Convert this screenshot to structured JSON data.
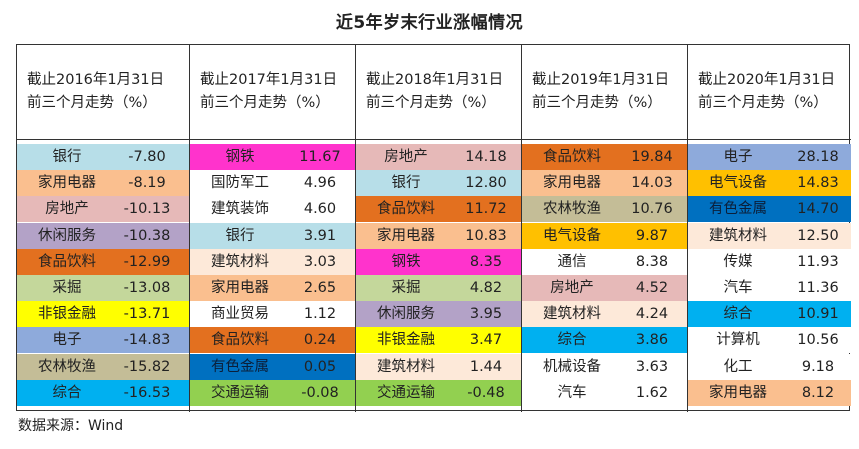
{
  "title": "近5年岁末行业涨幅情况",
  "source": "数据来源：Wind",
  "colors": {
    "非银金融": "#ffff00",
    "钢铁": "#ff33cc",
    "食品饮料": "#e3701f",
    "电气设备": "#ffc000",
    "有色金属": "#0070c0",
    "综合": "#00b0f0",
    "休闲服务": "#b3a2c7",
    "电子": "#8eaadb",
    "农林牧渔": "#c4bd97",
    "采掘": "#c4d79b",
    "家用电器": "#fabf8f",
    "房地产": "#e6b9b8",
    "银行": "#b7dee8",
    "交通运输": "#92d050",
    "建筑材料": "#fde9d9",
    "国防军工": "#ffffff",
    "建筑装饰": "#ffffff",
    "商业贸易": "#ffffff",
    "通信": "#ffffff",
    "机械设备": "#ffffff",
    "汽车": "#ffffff",
    "计算机": "#ffffff",
    "化工": "#ffffff",
    "传媒": "#ffffff"
  },
  "chart_data": {
    "type": "table",
    "unit": "%",
    "columns": [
      {
        "header": [
          "截止2016年1月31日",
          "前三个月走势（%）"
        ],
        "rows": [
          {
            "industry": "银行",
            "value": "-7.80"
          },
          {
            "industry": "家用电器",
            "value": "-8.19"
          },
          {
            "industry": "房地产",
            "value": "-10.13"
          },
          {
            "industry": "休闲服务",
            "value": "-10.38"
          },
          {
            "industry": "食品饮料",
            "value": "-12.99"
          },
          {
            "industry": "采掘",
            "value": "-13.08"
          },
          {
            "industry": "非银金融",
            "value": "-13.71"
          },
          {
            "industry": "电子",
            "value": "-14.83"
          },
          {
            "industry": "农林牧渔",
            "value": "-15.82"
          },
          {
            "industry": "综合",
            "value": "-16.53"
          }
        ]
      },
      {
        "header": [
          "截止2017年1月31日",
          "前三个月走势（%）"
        ],
        "rows": [
          {
            "industry": "钢铁",
            "value": "11.67"
          },
          {
            "industry": "国防军工",
            "value": "4.96"
          },
          {
            "industry": "建筑装饰",
            "value": "4.60"
          },
          {
            "industry": "银行",
            "value": "3.91"
          },
          {
            "industry": "建筑材料",
            "value": "3.03"
          },
          {
            "industry": "家用电器",
            "value": "2.65"
          },
          {
            "industry": "商业贸易",
            "value": "1.12"
          },
          {
            "industry": "食品饮料",
            "value": "0.24"
          },
          {
            "industry": "有色金属",
            "value": "0.05"
          },
          {
            "industry": "交通运输",
            "value": "-0.08"
          }
        ]
      },
      {
        "header": [
          "截止2018年1月31日",
          "前三个月走势（%）"
        ],
        "rows": [
          {
            "industry": "房地产",
            "value": "14.18"
          },
          {
            "industry": "银行",
            "value": "12.80"
          },
          {
            "industry": "食品饮料",
            "value": "11.72"
          },
          {
            "industry": "家用电器",
            "value": "10.83"
          },
          {
            "industry": "钢铁",
            "value": "8.35"
          },
          {
            "industry": "采掘",
            "value": "4.82"
          },
          {
            "industry": "休闲服务",
            "value": "3.95"
          },
          {
            "industry": "非银金融",
            "value": "3.47"
          },
          {
            "industry": "建筑材料",
            "value": "1.44"
          },
          {
            "industry": "交通运输",
            "value": "-0.48"
          }
        ]
      },
      {
        "header": [
          "截止2019年1月31日",
          "前三个月走势（%）"
        ],
        "rows": [
          {
            "industry": "食品饮料",
            "value": "19.84"
          },
          {
            "industry": "家用电器",
            "value": "14.03"
          },
          {
            "industry": "农林牧渔",
            "value": "10.76"
          },
          {
            "industry": "电气设备",
            "value": "9.87"
          },
          {
            "industry": "通信",
            "value": "8.38"
          },
          {
            "industry": "房地产",
            "value": "4.52"
          },
          {
            "industry": "建筑材料",
            "value": "4.24"
          },
          {
            "industry": "综合",
            "value": "3.86"
          },
          {
            "industry": "机械设备",
            "value": "3.63"
          },
          {
            "industry": "汽车",
            "value": "1.62"
          }
        ]
      },
      {
        "header": [
          "截止2020年1月31日",
          "前三个月走势（%）"
        ],
        "rows": [
          {
            "industry": "电子",
            "value": "28.18"
          },
          {
            "industry": "电气设备",
            "value": "14.83"
          },
          {
            "industry": "有色金属",
            "value": "14.70"
          },
          {
            "industry": "建筑材料",
            "value": "12.50"
          },
          {
            "industry": "传媒",
            "value": "11.93"
          },
          {
            "industry": "汽车",
            "value": "11.36"
          },
          {
            "industry": "综合",
            "value": "10.91"
          },
          {
            "industry": "计算机",
            "value": "10.56"
          },
          {
            "industry": "化工",
            "value": "9.18"
          },
          {
            "industry": "家用电器",
            "value": "8.12"
          }
        ]
      }
    ]
  }
}
